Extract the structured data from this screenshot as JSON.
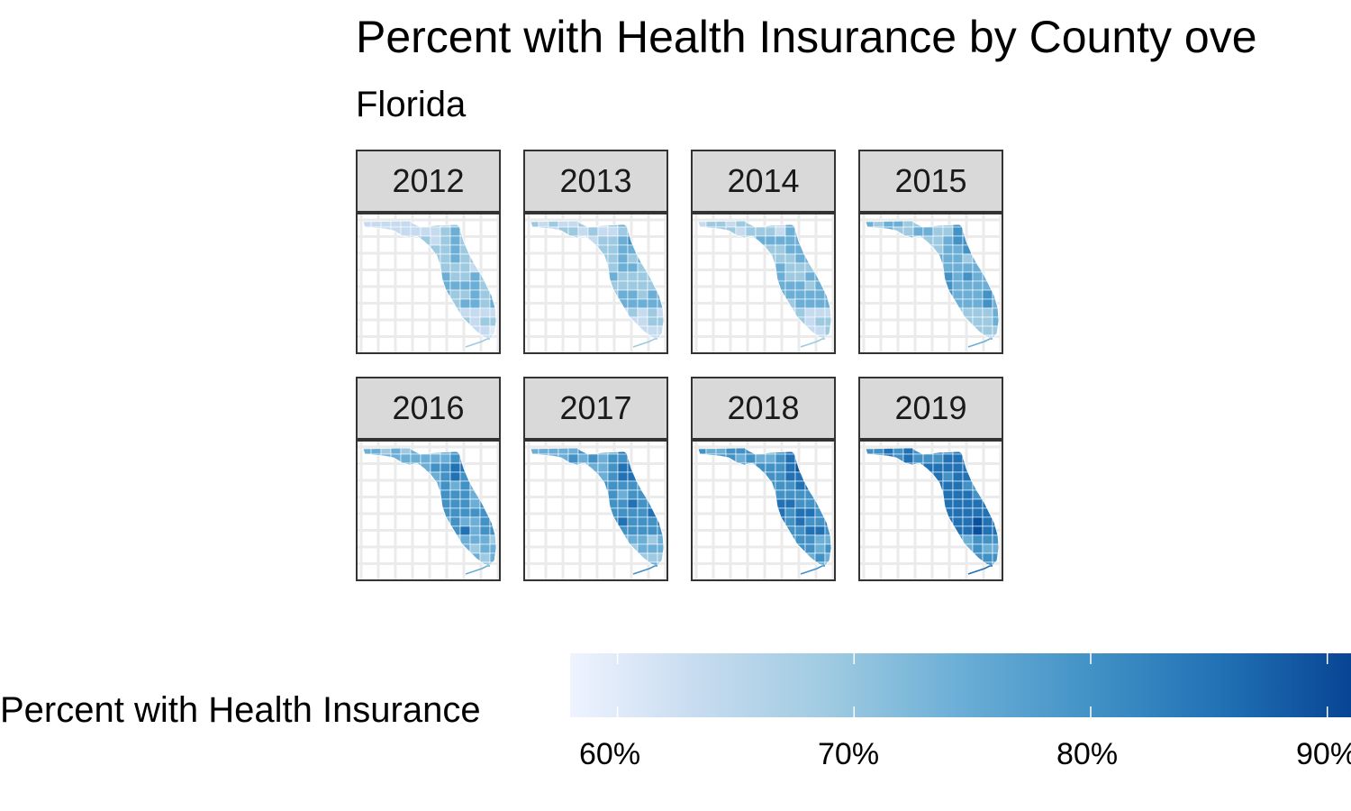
{
  "title": "Percent with Health Insurance by County ove",
  "subtitle": "Florida",
  "panels": [
    {
      "label": "2012"
    },
    {
      "label": "2013"
    },
    {
      "label": "2014"
    },
    {
      "label": "2015"
    },
    {
      "label": "2016"
    },
    {
      "label": "2017"
    },
    {
      "label": "2018"
    },
    {
      "label": "2019"
    }
  ],
  "legend": {
    "title": "Percent with Health Insurance",
    "labels": [
      "60%",
      "70%",
      "80%",
      "90%"
    ],
    "ticks": [
      60,
      70,
      80,
      90
    ],
    "range": [
      58,
      91
    ],
    "colors": [
      "#eff3ff",
      "#c6dbef",
      "#9ecae1",
      "#6baed6",
      "#4292c6",
      "#2171b5",
      "#084594"
    ]
  },
  "colors": {
    "strip_bg": "#d9d9d9",
    "grid": "#ebebeb",
    "county_border": "#ffffff",
    "panel_border": "#333333"
  }
}
